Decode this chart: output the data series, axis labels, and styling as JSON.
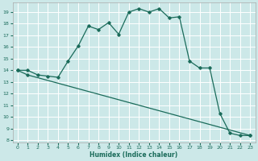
{
  "xlabel": "Humidex (Indice chaleur)",
  "ylabel": "",
  "background_color": "#cce8e8",
  "grid_color": "#ffffff",
  "line_color": "#1a6b5a",
  "xlim": [
    -0.5,
    23.5
  ],
  "ylim": [
    7.8,
    19.8
  ],
  "yticks": [
    8,
    9,
    10,
    11,
    12,
    13,
    14,
    15,
    16,
    17,
    18,
    19
  ],
  "xticks": [
    0,
    1,
    2,
    3,
    4,
    5,
    6,
    7,
    8,
    9,
    10,
    11,
    12,
    13,
    14,
    15,
    16,
    17,
    18,
    19,
    20,
    21,
    22,
    23
  ],
  "curve1_x": [
    0,
    1,
    2,
    3,
    4,
    5,
    6,
    7,
    8,
    9,
    10,
    11,
    12,
    13,
    14,
    15,
    16,
    17,
    18,
    19,
    20,
    21,
    22,
    23
  ],
  "curve1_y": [
    14.0,
    14.0,
    13.6,
    13.5,
    13.4,
    14.8,
    16.1,
    17.8,
    17.5,
    18.1,
    17.1,
    19.0,
    19.3,
    19.0,
    19.3,
    18.5,
    18.6,
    14.8,
    14.2,
    14.2,
    10.3,
    8.6,
    8.4,
    8.4
  ],
  "curve2_x": [
    0,
    1,
    23
  ],
  "curve2_y": [
    14.0,
    13.6,
    8.4
  ]
}
